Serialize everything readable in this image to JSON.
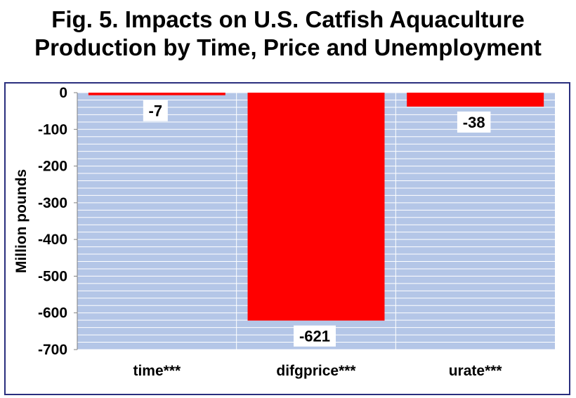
{
  "chart_data": {
    "type": "bar",
    "title": "Fig. 5. Impacts on U.S. Catfish Aquaculture",
    "subtitle": "Production by Time, Price and Unemployment",
    "ylabel": "Million pounds",
    "xlabel": "",
    "categories": [
      "time***",
      "difgprice***",
      "urate***"
    ],
    "values": [
      -7,
      -621,
      -38
    ],
    "data_labels": [
      "-7",
      "-621",
      "-38"
    ],
    "ylim": [
      -700,
      0
    ],
    "yticks": [
      0,
      -100,
      -200,
      -300,
      -400,
      -500,
      -600,
      -700
    ],
    "ytick_labels": [
      "0",
      "-100",
      "-200",
      "-300",
      "-400",
      "-500",
      "-600",
      "-700"
    ],
    "grid": true,
    "legend": "none",
    "colors": {
      "bar": "#ff0000",
      "plot_background": "#b4c6e7",
      "gridline": "#ffffff",
      "frame": "#2a2f7e",
      "label_box": "#ffffff",
      "text": "#000000"
    }
  }
}
